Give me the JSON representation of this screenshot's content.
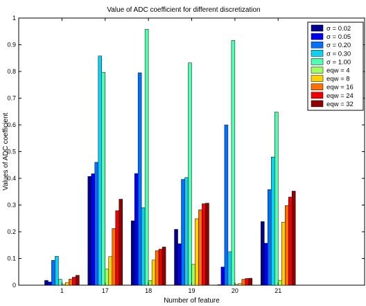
{
  "chart_data": {
    "type": "bar",
    "title": "Value of ADC coefficient for different discretization",
    "xlabel": "Number of feature",
    "ylabel": "Values of ADC coefficient",
    "ylim": [
      0,
      1
    ],
    "yticks": [
      0,
      0.1,
      0.2,
      0.3,
      0.4,
      0.5,
      0.6,
      0.7,
      0.8,
      0.9,
      1
    ],
    "ytick_labels": [
      "0",
      "0.1",
      "0.2",
      "0.3",
      "0.4",
      "0.5",
      "0.6",
      "0.7",
      "0.8",
      "0.9",
      "1"
    ],
    "xlim": [
      0,
      8
    ],
    "categories": [
      "1",
      "17",
      "18",
      "19",
      "20",
      "21"
    ],
    "grid": false,
    "legend_position": "top-right",
    "series": [
      {
        "name": "σ = 0.02",
        "color": "#00008f",
        "values": [
          0.018,
          0.407,
          0.241,
          0.209,
          0.002,
          0.238
        ]
      },
      {
        "name": "σ = 0.05",
        "color": "#0000ef",
        "values": [
          0.012,
          0.417,
          0.418,
          0.155,
          0.068,
          0.157
        ]
      },
      {
        "name": "σ = 0.20",
        "color": "#0070ff",
        "values": [
          0.093,
          0.46,
          0.795,
          0.396,
          0.6,
          0.358
        ]
      },
      {
        "name": "σ = 0.30",
        "color": "#10d0f0",
        "values": [
          0.108,
          0.858,
          0.29,
          0.403,
          0.125,
          0.48
        ]
      },
      {
        "name": "σ = 1.00",
        "color": "#50ffaf",
        "values": [
          0.022,
          0.797,
          0.958,
          0.832,
          0.916,
          0.648
        ]
      },
      {
        "name": "eqw = 4",
        "color": "#a0ff60",
        "values": [
          0.003,
          0.06,
          0.017,
          0.078,
          0.003,
          0.018
        ]
      },
      {
        "name": "eqw = 8",
        "color": "#ffd000",
        "values": [
          0.01,
          0.107,
          0.094,
          0.249,
          0.006,
          0.236
        ]
      },
      {
        "name": "eqw = 16",
        "color": "#ff6f00",
        "values": [
          0.023,
          0.212,
          0.129,
          0.282,
          0.022,
          0.298
        ]
      },
      {
        "name": "eqw = 24",
        "color": "#ef0000",
        "values": [
          0.03,
          0.279,
          0.135,
          0.305,
          0.025,
          0.33
        ]
      },
      {
        "name": "eqw = 32",
        "color": "#8f0000",
        "values": [
          0.037,
          0.322,
          0.143,
          0.307,
          0.026,
          0.352
        ]
      }
    ]
  }
}
